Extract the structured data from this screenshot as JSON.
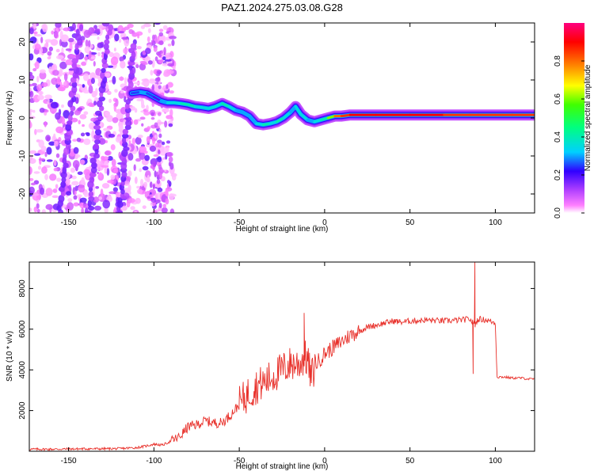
{
  "title": "PAZ1.2024.275.03.08.G28",
  "chart_data": [
    {
      "type": "heatmap",
      "xlabel": "Height of straight line (km)",
      "ylabel": "Frequency (Hz)",
      "xlim": [
        -173,
        123
      ],
      "ylim": [
        -25,
        25
      ],
      "x_ticks": [
        -150,
        -100,
        -50,
        0,
        50,
        100
      ],
      "y_ticks": [
        -20,
        -10,
        0,
        10,
        20
      ],
      "ridge": {
        "description_only": false,
        "x": [
          -113,
          -108,
          -104,
          -100,
          -96,
          -92,
          -88,
          -84,
          -80,
          -76,
          -72,
          -68,
          -64,
          -60,
          -56,
          -52,
          -48,
          -44,
          -40,
          -36,
          -32,
          -28,
          -24,
          -20,
          -17,
          -14,
          -10,
          -6,
          -2,
          2,
          6,
          10,
          15,
          30,
          50,
          70,
          85,
          90,
          100,
          110,
          123
        ],
        "y": [
          6.5,
          6.8,
          6.5,
          5.5,
          4.5,
          4.0,
          4.0,
          3.8,
          3.5,
          3.0,
          2.8,
          2.5,
          3.0,
          3.8,
          3.0,
          2.0,
          1.5,
          0.5,
          -1.5,
          -1.8,
          -1.5,
          -1.0,
          0.0,
          1.5,
          3.0,
          1.0,
          -0.5,
          -1.0,
          -0.5,
          0.0,
          0.5,
          0.5,
          0.8,
          0.8,
          0.8,
          0.8,
          0.8,
          0.8,
          0.8,
          0.8,
          0.8
        ],
        "amplitude": [
          0.25,
          0.3,
          0.25,
          0.2,
          0.3,
          0.35,
          0.35,
          0.4,
          0.4,
          0.35,
          0.35,
          0.35,
          0.35,
          0.4,
          0.35,
          0.3,
          0.3,
          0.3,
          0.35,
          0.4,
          0.35,
          0.4,
          0.35,
          0.3,
          0.35,
          0.35,
          0.3,
          0.35,
          0.4,
          0.6,
          0.8,
          0.85,
          0.9,
          0.9,
          0.9,
          0.85,
          0.85,
          0.85,
          0.85,
          0.85,
          0.85
        ]
      },
      "colorbar": {
        "label": "Normalized spectral amplitude",
        "range": [
          0,
          1
        ],
        "ticks": [
          0.0,
          0.2,
          0.4,
          0.6,
          0.8
        ],
        "colormap": [
          "#ffffff",
          "#ff00ff",
          "#8000ff",
          "#0000ff",
          "#00ffff",
          "#00ff00",
          "#ffff00",
          "#ff8000",
          "#ff0000",
          "#ff0080"
        ]
      },
      "grid": false
    },
    {
      "type": "line",
      "xlabel": "Height of straight line (km)",
      "ylabel": "SNR (10 * v/v)",
      "xlim": [
        -173,
        123
      ],
      "ylim": [
        0,
        9300
      ],
      "x_ticks": [
        -150,
        -100,
        -50,
        0,
        50,
        100
      ],
      "y_ticks": [
        2000,
        4000,
        6000,
        8000
      ],
      "series": [
        {
          "color": "#e8302a",
          "x": [
            -173,
            -160,
            -150,
            -140,
            -130,
            -120,
            -110,
            -105,
            -100,
            -95,
            -90,
            -85,
            -80,
            -75,
            -70,
            -65,
            -60,
            -55,
            -50,
            -45,
            -40,
            -35,
            -30,
            -25,
            -20,
            -15,
            -12,
            -10,
            -8,
            -5,
            0,
            5,
            10,
            15,
            20,
            25,
            30,
            35,
            40,
            45,
            50,
            60,
            70,
            80,
            85,
            88,
            90,
            95,
            100,
            101,
            105,
            110,
            115,
            120,
            123
          ],
          "y": [
            100,
            100,
            110,
            120,
            120,
            130,
            180,
            250,
            350,
            300,
            500,
            700,
            1200,
            1300,
            1500,
            1400,
            1400,
            1800,
            2300,
            2800,
            3200,
            3400,
            3700,
            4000,
            4300,
            4300,
            4600,
            4500,
            3600,
            4300,
            4800,
            5100,
            5400,
            5700,
            5900,
            6100,
            6200,
            6300,
            6400,
            6350,
            6400,
            6450,
            6400,
            6450,
            6500,
            6200,
            6500,
            6450,
            6300,
            3650,
            3650,
            3600,
            3600,
            3550,
            3550
          ]
        }
      ],
      "annotations_peaks": [
        {
          "x": -12,
          "y": 6800
        },
        {
          "x": 88,
          "y": 9300
        },
        {
          "x": 87,
          "y": 3800
        }
      ],
      "grid": false
    }
  ]
}
